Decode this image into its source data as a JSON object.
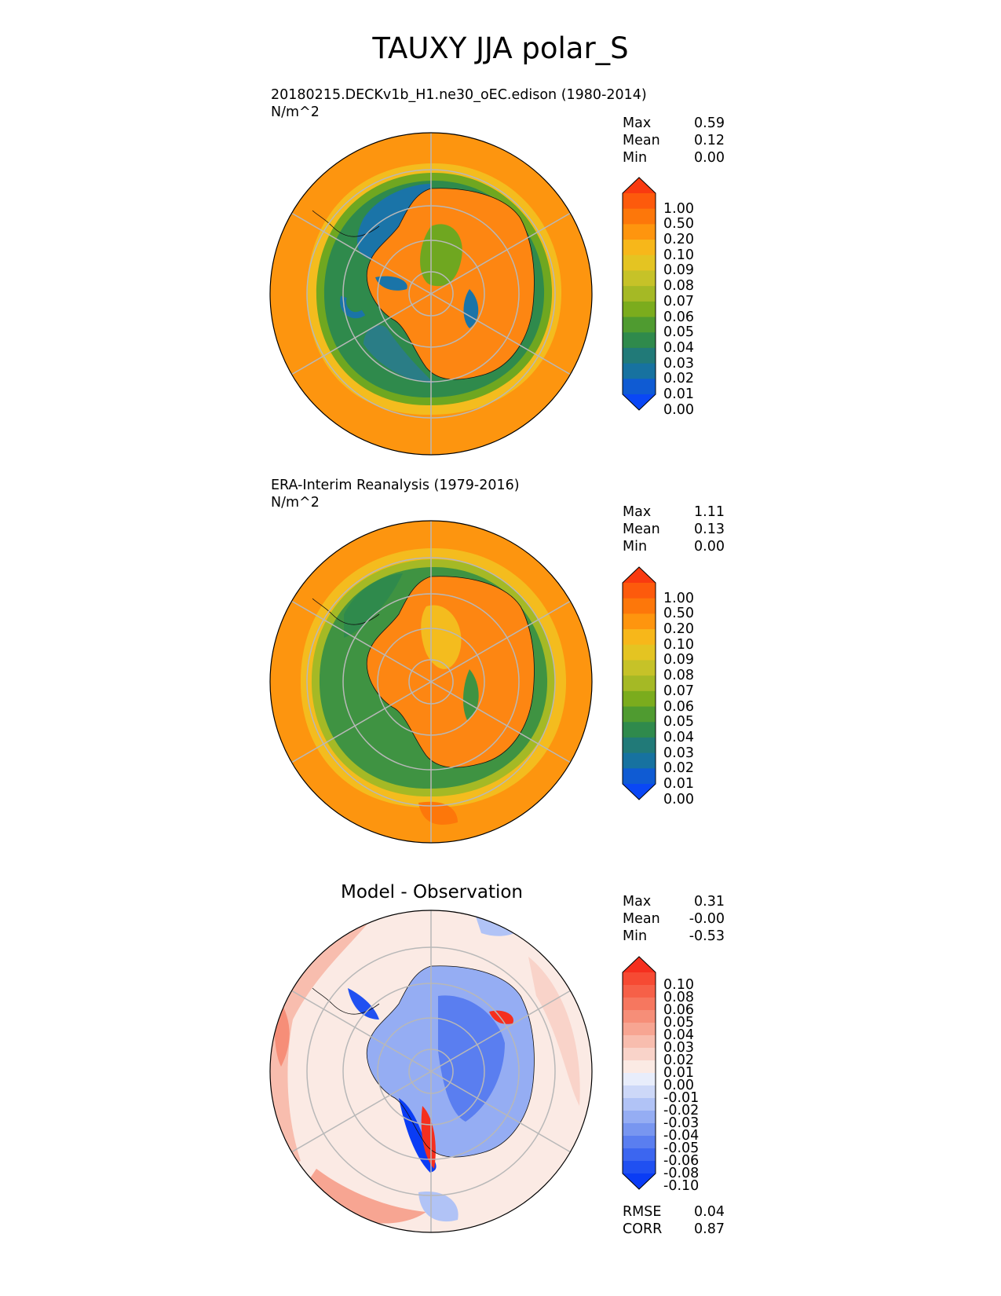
{
  "figure": {
    "title": "TAUXY JJA polar_S"
  },
  "panels": [
    {
      "id": "model",
      "title_line1": "20180215.DECKv1b_H1.ne30_oEC.edison (1980-2014)",
      "units": "N/m^2",
      "stats": {
        "max_label": "Max",
        "max": "0.59",
        "mean_label": "Mean",
        "mean": "0.12",
        "min_label": "Min",
        "min": "0.00"
      },
      "colorbar": {
        "ticks": [
          "1.00",
          "0.50",
          "0.20",
          "0.10",
          "0.09",
          "0.08",
          "0.07",
          "0.06",
          "0.05",
          "0.04",
          "0.03",
          "0.02",
          "0.01",
          "0.00"
        ],
        "colors": [
          "#f93a10",
          "#fd5a0c",
          "#fd770a",
          "#fe950e",
          "#f7b71a",
          "#e4c422",
          "#c6c228",
          "#a5b925",
          "#7bac1d",
          "#4f9b30",
          "#2f8a4c",
          "#217a78",
          "#1772a0",
          "#0f5bd3",
          "#0a47f5"
        ]
      }
    },
    {
      "id": "obs",
      "title_line1": "ERA-Interim Reanalysis (1979-2016)",
      "units": "N/m^2",
      "stats": {
        "max_label": "Max",
        "max": "1.11",
        "mean_label": "Mean",
        "mean": "0.13",
        "min_label": "Min",
        "min": "0.00"
      },
      "colorbar": {
        "ticks": [
          "1.00",
          "0.50",
          "0.20",
          "0.10",
          "0.09",
          "0.08",
          "0.07",
          "0.06",
          "0.05",
          "0.04",
          "0.03",
          "0.02",
          "0.01",
          "0.00"
        ],
        "colors": [
          "#f93a10",
          "#fd5a0c",
          "#fd770a",
          "#fe950e",
          "#f7b71a",
          "#e4c422",
          "#c6c228",
          "#a5b925",
          "#7bac1d",
          "#4f9b30",
          "#2f8a4c",
          "#217a78",
          "#1772a0",
          "#0f5bd3",
          "#0a47f5"
        ]
      }
    },
    {
      "id": "diff",
      "title": "Model - Observation",
      "stats": {
        "max_label": "Max",
        "max": "0.31",
        "mean_label": "Mean",
        "mean": "-0.00",
        "min_label": "Min",
        "min": "-0.53"
      },
      "metrics": {
        "rmse_label": "RMSE",
        "rmse": "0.04",
        "corr_label": "CORR",
        "corr": "0.87"
      },
      "colorbar": {
        "ticks": [
          "0.10",
          "0.08",
          "0.06",
          "0.05",
          "0.04",
          "0.03",
          "0.02",
          "0.01",
          "0.00",
          "-0.01",
          "-0.02",
          "-0.03",
          "-0.04",
          "-0.05",
          "-0.06",
          "-0.08",
          "-0.10"
        ],
        "colors": [
          "#f52f1e",
          "#f64a33",
          "#f66048",
          "#f6775f",
          "#f68e78",
          "#f7a592",
          "#f8bdae",
          "#f9d3c9",
          "#fbeae4",
          "#e8edfb",
          "#cdd8f8",
          "#b1c3f6",
          "#95adf3",
          "#7896f0",
          "#5a7ef0",
          "#3c66f0",
          "#2050f1",
          "#0a3cf5"
        ]
      }
    }
  ]
}
